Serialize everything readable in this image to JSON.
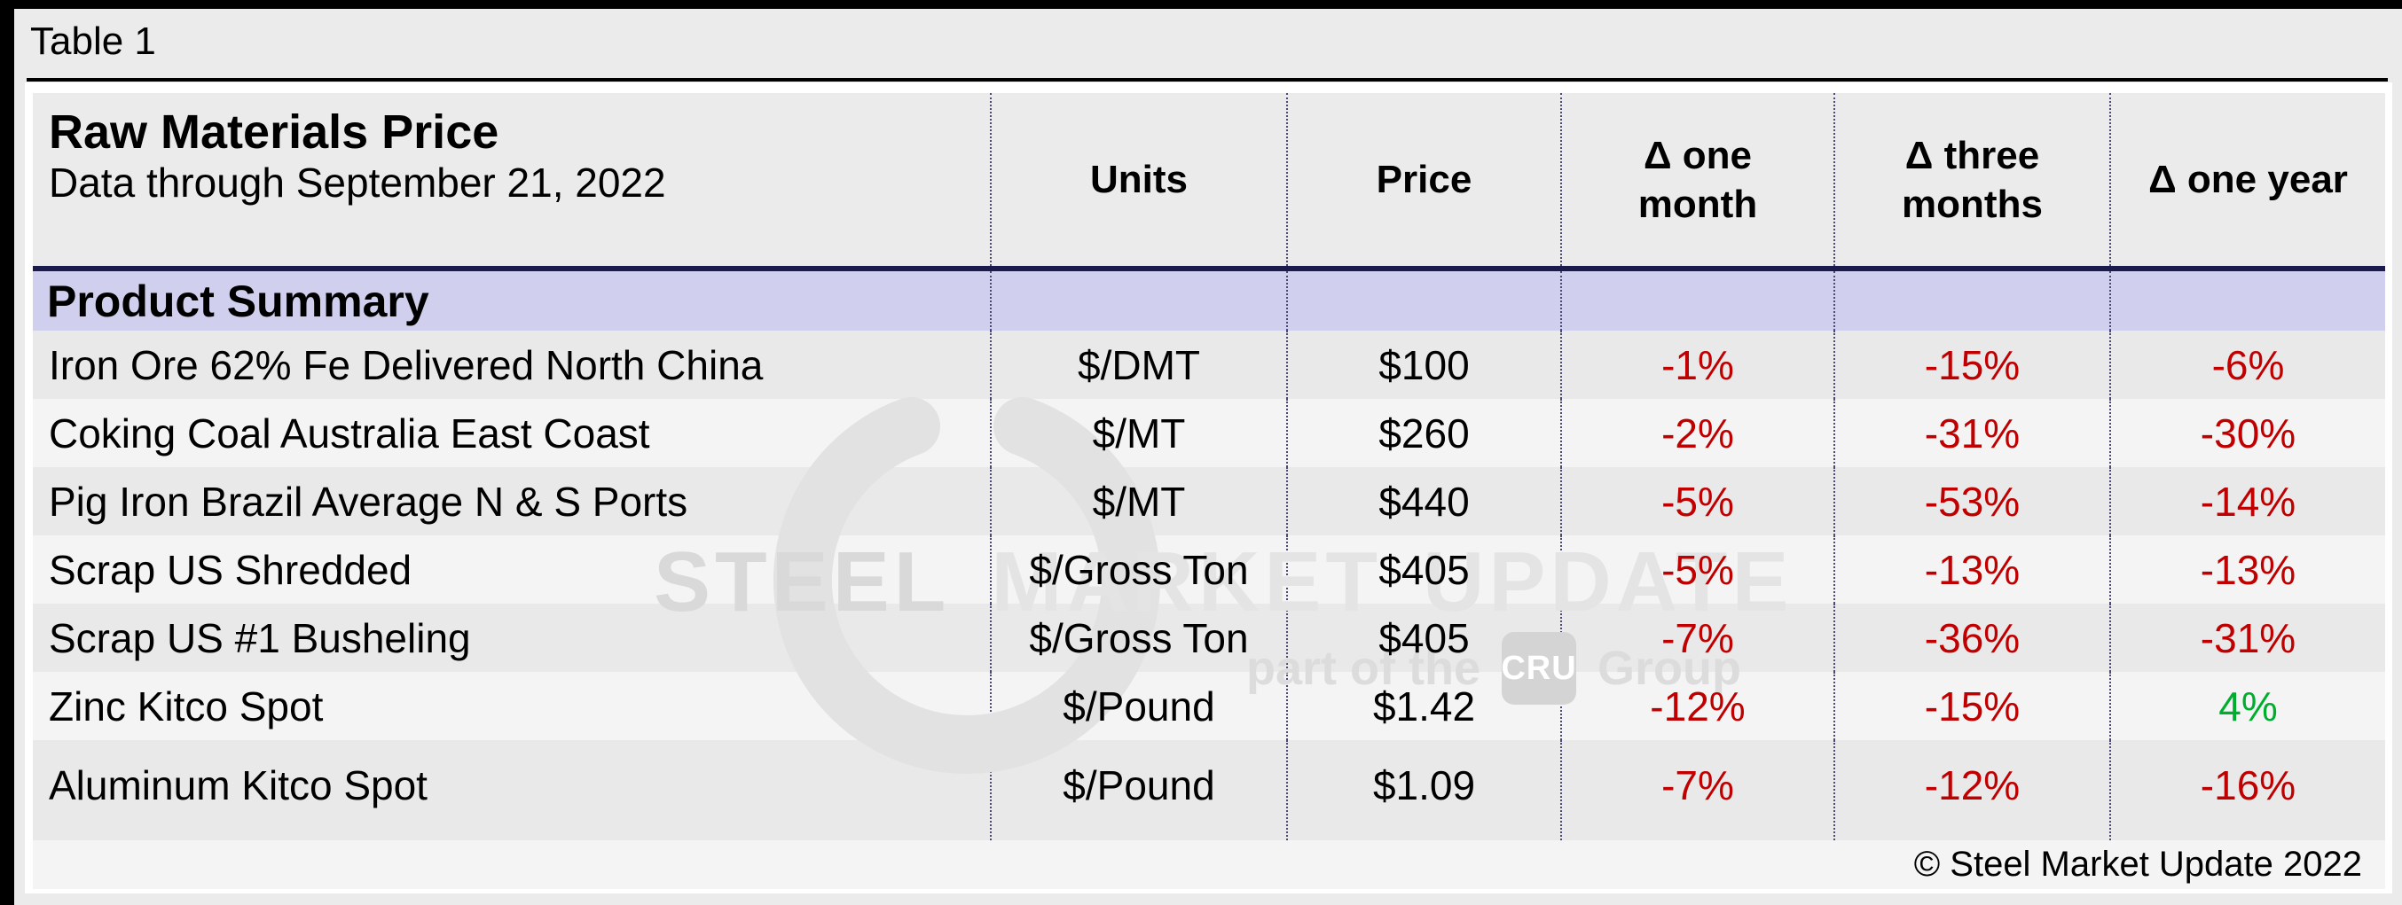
{
  "page": {
    "caption": "Table 1",
    "footer": "© Steel Market Update 2022"
  },
  "header": {
    "title": "Raw Materials Price",
    "subtitle": "Data through September 21, 2022",
    "columns": [
      "Units",
      "Price",
      "Δ one month",
      "Δ three months",
      "Δ one year"
    ]
  },
  "section": {
    "label": "Product Summary"
  },
  "watermark": {
    "line1": [
      "STEEL",
      "MARKET",
      "UPDATE"
    ],
    "part_of_the": "part of the",
    "cru": "CRU",
    "group": "Group"
  },
  "colors": {
    "negative": "#c00000",
    "positive": "#00ae2f",
    "band_fill": "#d0d0ee",
    "band_border": "#1a1a4d",
    "divider_dash": "#4a4a75",
    "row_odd": "#e9e9e9",
    "row_even": "#f4f4f4"
  },
  "chart_data": {
    "type": "table",
    "title": "Raw Materials Price",
    "subtitle": "Data through September 21, 2022",
    "section": "Product Summary",
    "columns": [
      "Product",
      "Units",
      "Price",
      "Δ one month",
      "Δ three months",
      "Δ one year"
    ],
    "rows": [
      {
        "product": "Iron Ore 62% Fe Delivered North China",
        "units": "$/DMT",
        "price": "$100",
        "delta_one_month": "-1%",
        "delta_three_months": "-15%",
        "delta_one_year": "-6%"
      },
      {
        "product": "Coking Coal Australia East Coast",
        "units": "$/MT",
        "price": "$260",
        "delta_one_month": "-2%",
        "delta_three_months": "-31%",
        "delta_one_year": "-30%"
      },
      {
        "product": "Pig Iron Brazil Average N & S Ports",
        "units": "$/MT",
        "price": "$440",
        "delta_one_month": "-5%",
        "delta_three_months": "-53%",
        "delta_one_year": "-14%"
      },
      {
        "product": "Scrap US Shredded",
        "units": "$/Gross Ton",
        "price": "$405",
        "delta_one_month": "-5%",
        "delta_three_months": "-13%",
        "delta_one_year": "-13%"
      },
      {
        "product": "Scrap US #1 Busheling",
        "units": "$/Gross Ton",
        "price": "$405",
        "delta_one_month": "-7%",
        "delta_three_months": "-36%",
        "delta_one_year": "-31%"
      },
      {
        "product": "Zinc Kitco Spot",
        "units": "$/Pound",
        "price": "$1.42",
        "delta_one_month": "-12%",
        "delta_three_months": "-15%",
        "delta_one_year": "4%"
      },
      {
        "product": "Aluminum Kitco Spot",
        "units": "$/Pound",
        "price": "$1.09",
        "delta_one_month": "-7%",
        "delta_three_months": "-12%",
        "delta_one_year": "-16%"
      }
    ]
  }
}
